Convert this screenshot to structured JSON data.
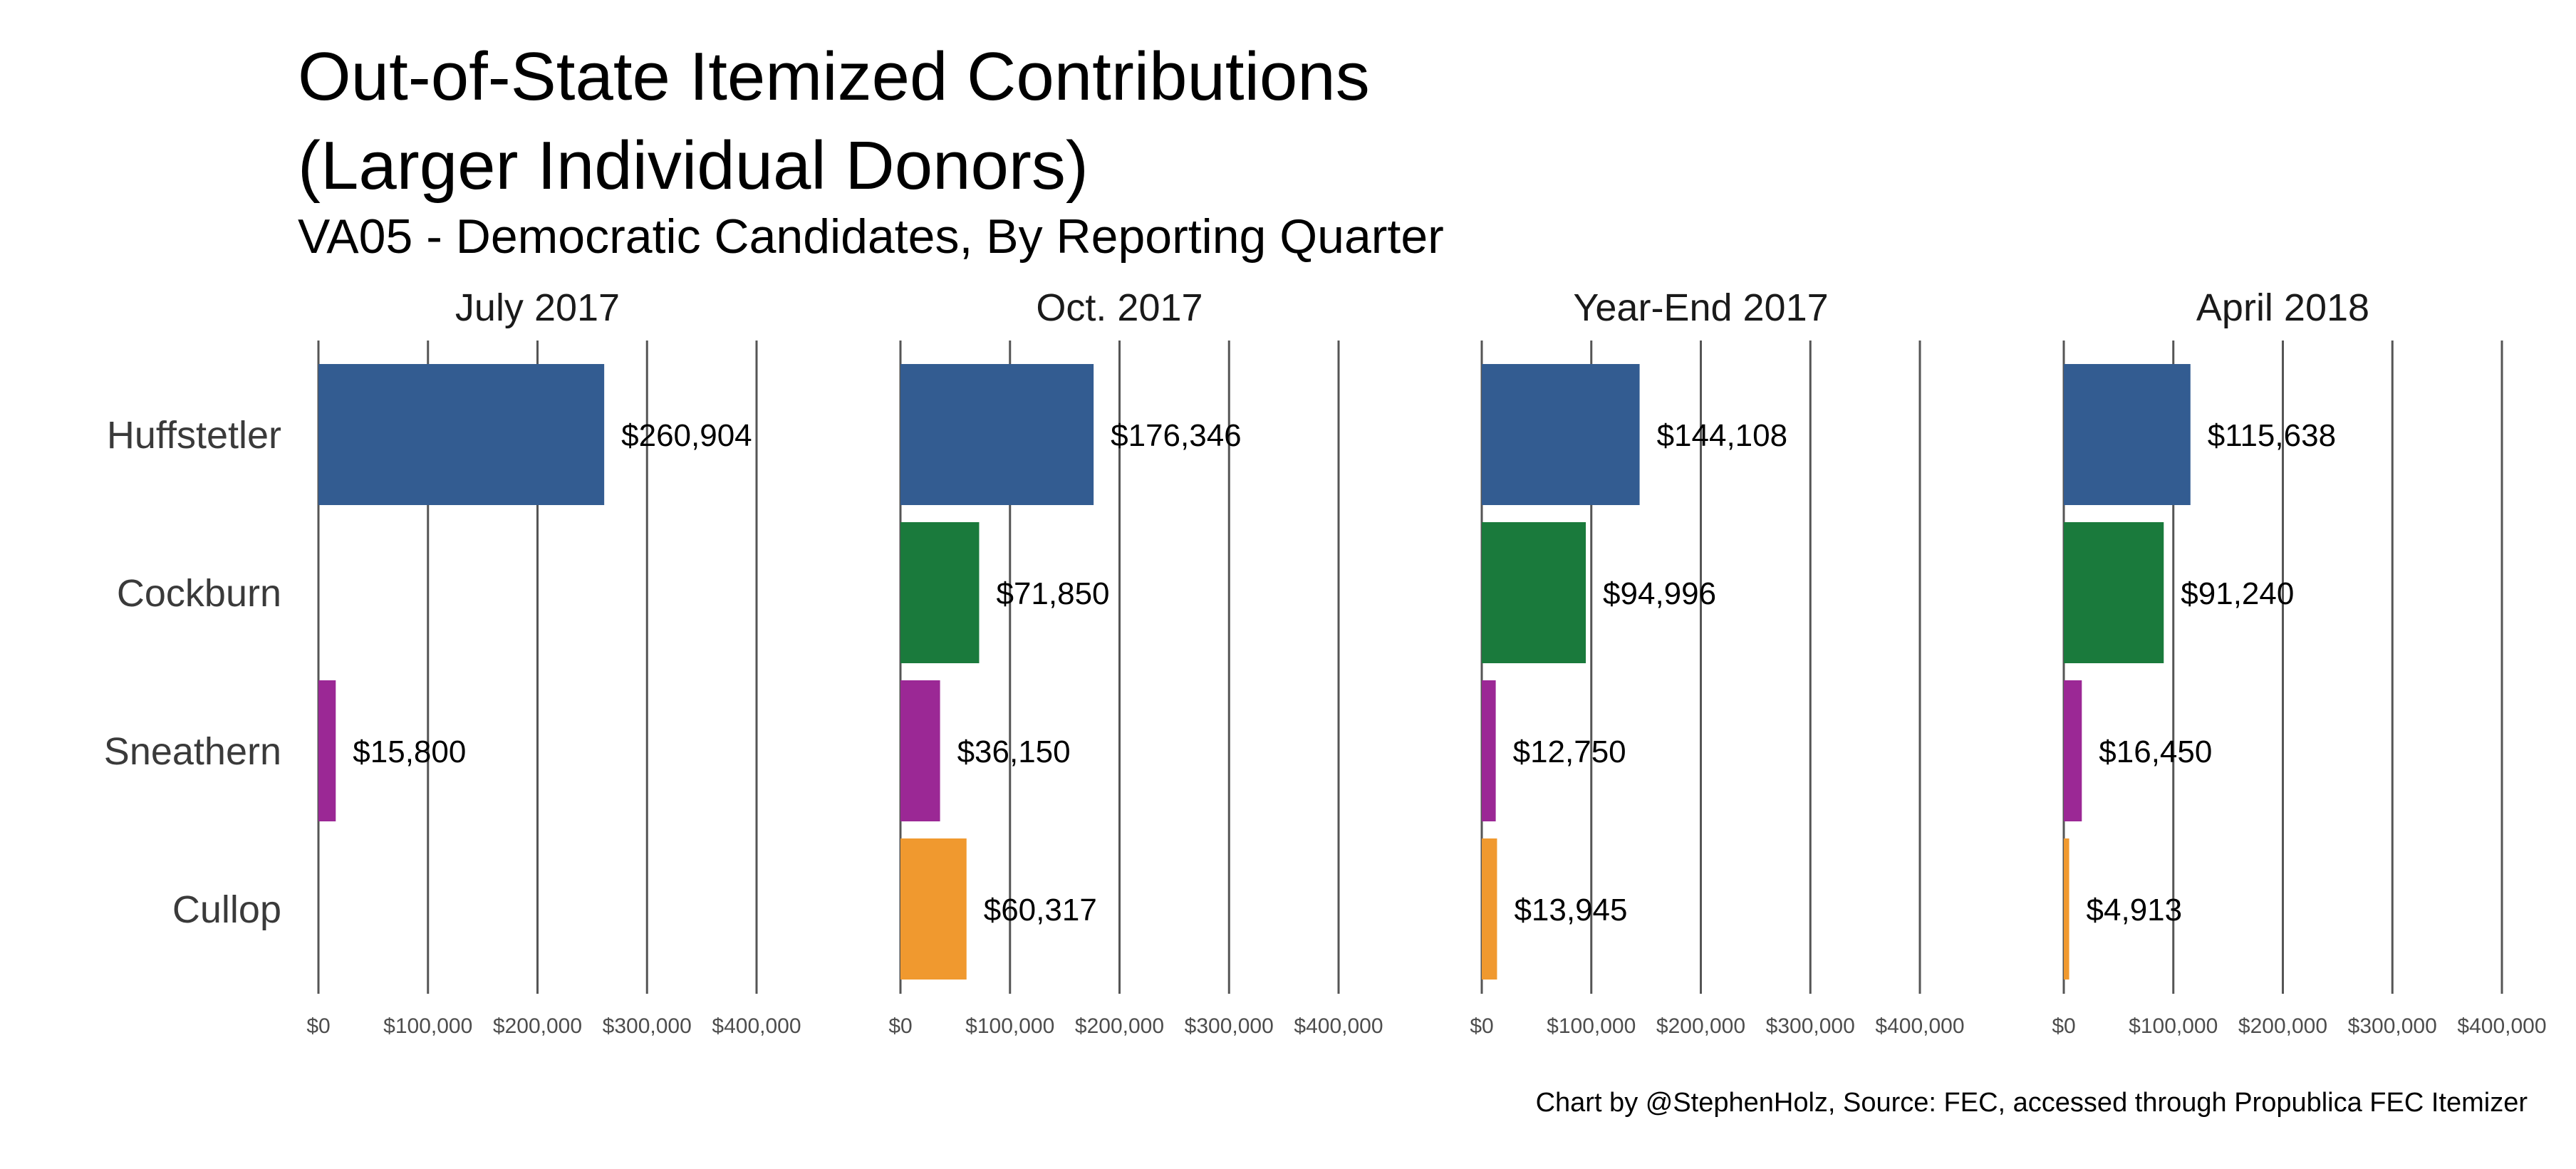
{
  "chart_data": {
    "type": "bar",
    "orientation": "horizontal",
    "title_lines": [
      "Out-of-State Itemized Contributions",
      "(Larger Individual Donors)"
    ],
    "subtitle": "VA05 - Democratic Candidates, By Reporting Quarter",
    "caption": "Chart by @StephenHolz, Source: FEC, accessed through Propublica FEC Itemizer",
    "categories": [
      "Huffstetler",
      "Cockburn",
      "Sneathern",
      "Cullop"
    ],
    "category_colors": [
      "#335c91",
      "#1a7a3c",
      "#9b2895",
      "#f0992f"
    ],
    "xlim": [
      0,
      400000
    ],
    "ticks": [
      0,
      100000,
      200000,
      300000,
      400000
    ],
    "tick_labels": [
      "$0",
      "$100,000",
      "$200,000",
      "$300,000",
      "$400,000"
    ],
    "grid": true,
    "legend": "none",
    "panels": [
      {
        "name": "July 2017",
        "values": [
          260904,
          null,
          15800,
          null
        ],
        "labels": [
          "$260,904",
          "",
          "$15,800",
          ""
        ]
      },
      {
        "name": "Oct. 2017",
        "values": [
          176346,
          71850,
          36150,
          60317
        ],
        "labels": [
          "$176,346",
          "$71,850",
          "$36,150",
          "$60,317"
        ]
      },
      {
        "name": "Year-End 2017",
        "values": [
          144108,
          94996,
          12750,
          13945
        ],
        "labels": [
          "$144,108",
          "$94,996",
          "$12,750",
          "$13,945"
        ]
      },
      {
        "name": "April 2018",
        "values": [
          115638,
          91240,
          16450,
          4913
        ],
        "labels": [
          "$115,638",
          "$91,240",
          "$16,450",
          "$4,913"
        ]
      }
    ]
  }
}
